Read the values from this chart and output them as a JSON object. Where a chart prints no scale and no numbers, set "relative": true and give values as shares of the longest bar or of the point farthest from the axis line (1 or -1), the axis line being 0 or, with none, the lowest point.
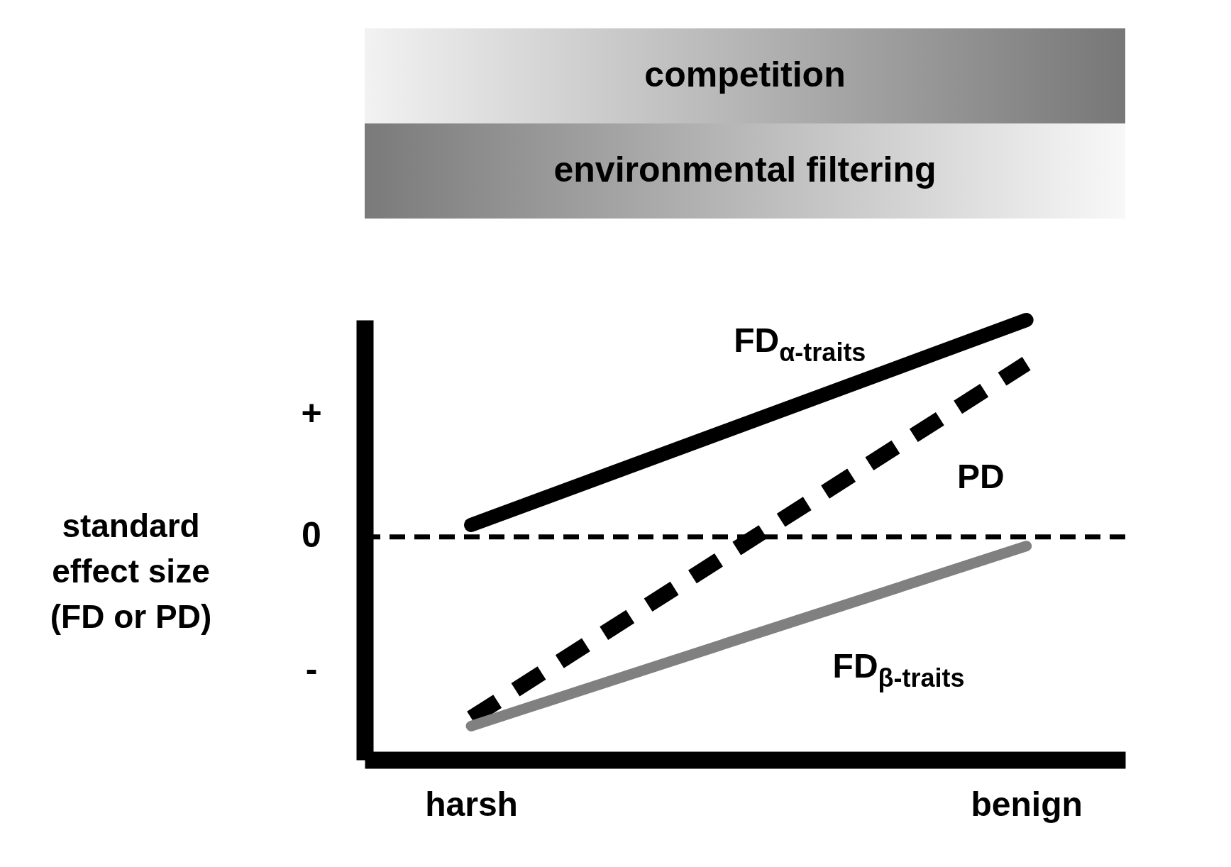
{
  "chart_data": {
    "type": "line",
    "relative": true,
    "ylabel": "standard effect size (FD or PD)",
    "categories": [
      "harsh",
      "benign"
    ],
    "annotations": [
      "competition",
      "environmental filtering",
      "+",
      "0",
      "-"
    ],
    "grid": false,
    "marker": "none",
    "ref_lines": [
      {
        "axis": "y",
        "value": 0.507,
        "color": "#000000",
        "line_style": "dashed"
      }
    ],
    "series": [
      {
        "name": "FD$_{α-traits}$",
        "color": "#000000",
        "line_style": "solid",
        "values": [
          0.534,
          1.0
        ]
      },
      {
        "name": "PD",
        "color": "#000000",
        "line_style": "dashed",
        "values": [
          0.095,
          0.901
        ]
      },
      {
        "name": "FD$_{β-traits}$",
        "color": "#808080",
        "line_style": "solid",
        "values": [
          0.077,
          0.486
        ]
      }
    ]
  }
}
